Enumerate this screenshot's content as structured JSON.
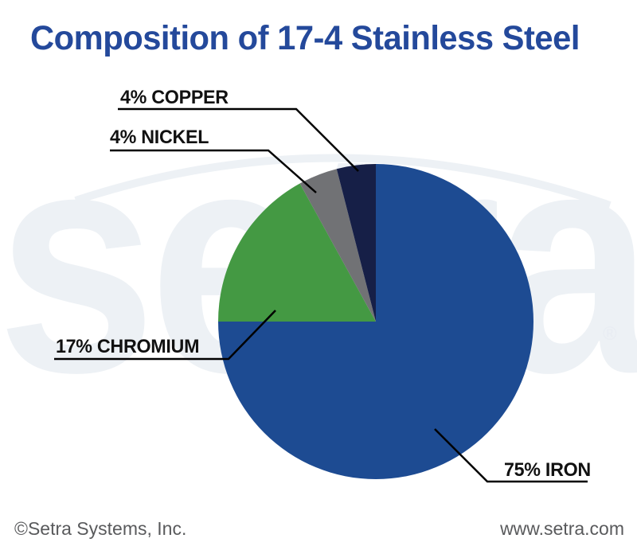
{
  "title": "Composition of 17-4 Stainless Steel",
  "chart_data": {
    "type": "pie",
    "title": "Composition of 17-4 Stainless Steel",
    "unit": "percent",
    "direction": "clockwise",
    "start_angle_deg": 0,
    "legend_position": "callout-labels",
    "slices": [
      {
        "name": "Iron",
        "value": 75,
        "label": "75% IRON",
        "color": "#1d4b92"
      },
      {
        "name": "Chromium",
        "value": 17,
        "label": "17% CHROMIUM",
        "color": "#449943"
      },
      {
        "name": "Nickel",
        "value": 4,
        "label": "4% NICKEL",
        "color": "#717275"
      },
      {
        "name": "Copper",
        "value": 4,
        "label": "4% COPPER",
        "color": "#161f47"
      }
    ]
  },
  "watermark": {
    "text": "setra",
    "registered": "®"
  },
  "footer": {
    "left": "©Setra Systems, Inc.",
    "right": "www.setra.com"
  },
  "colors": {
    "title_text": "#24499b",
    "label_text": "#111111",
    "leader_line": "#000000",
    "footer_text": "#595a5c",
    "watermark": "#edf1f5",
    "background": "#ffffff"
  }
}
